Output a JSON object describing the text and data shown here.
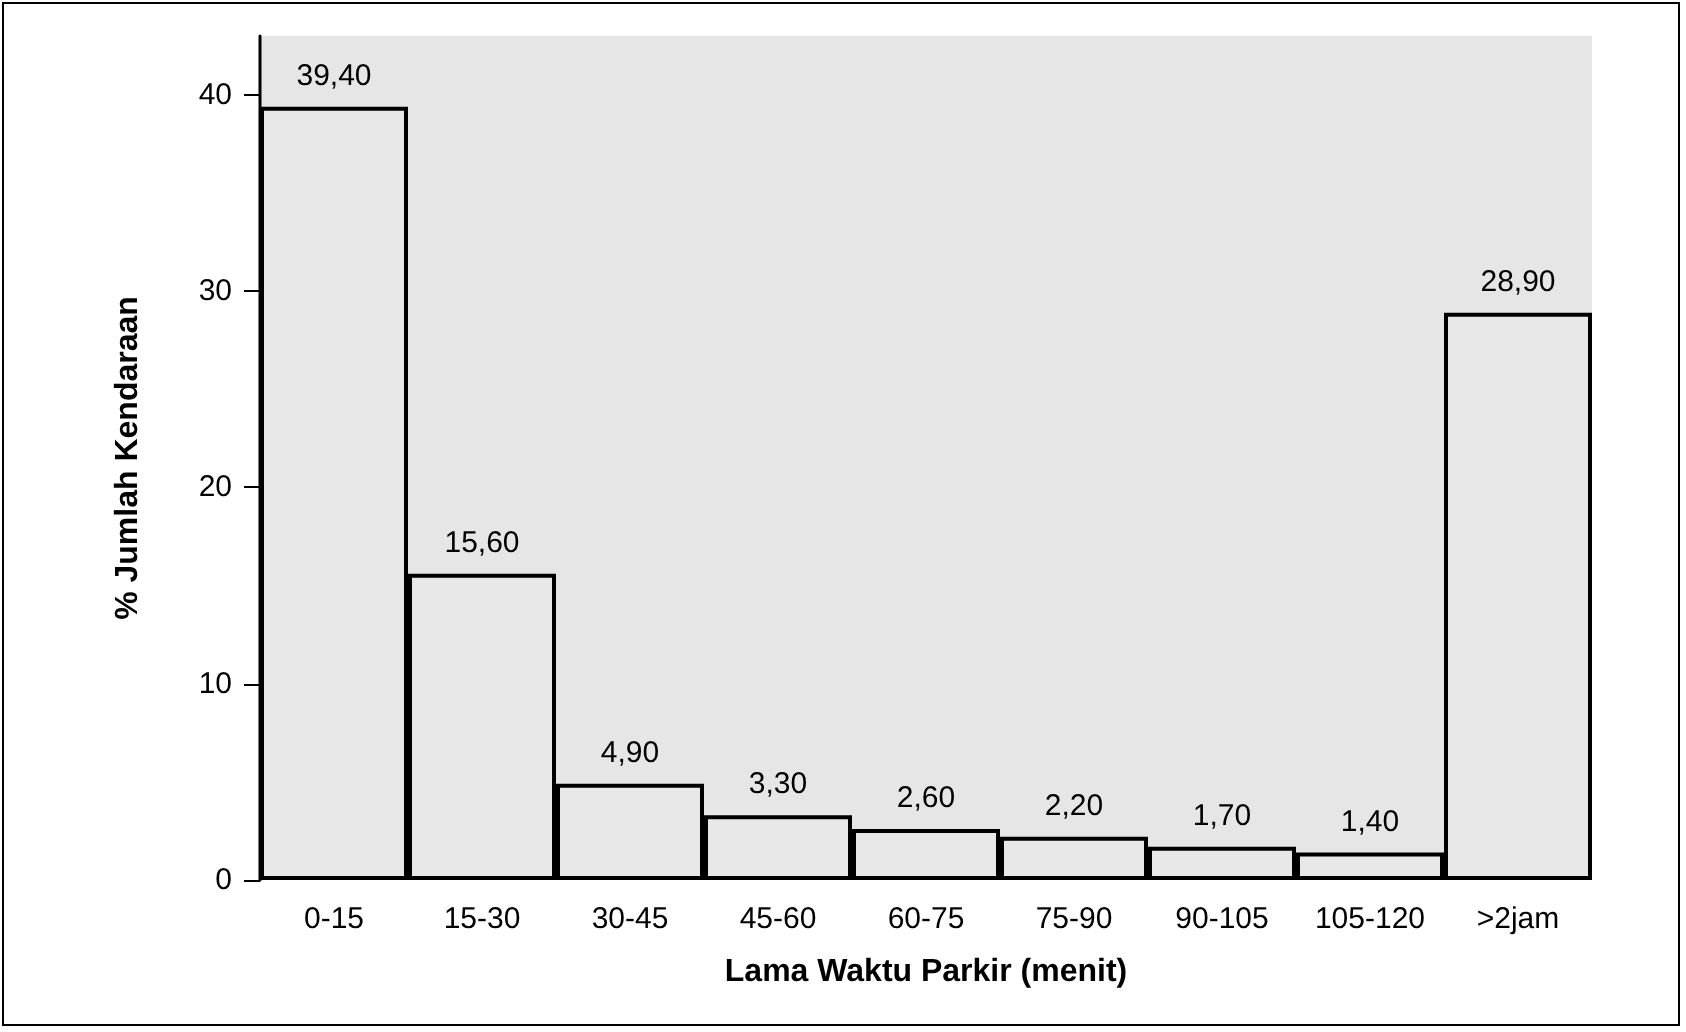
{
  "chart_data": {
    "type": "bar",
    "xlabel": "Lama Waktu Parkir (menit)",
    "ylabel": "% Jumlah Kendaraan",
    "categories": [
      "0-15",
      "15-30",
      "30-45",
      "45-60",
      "60-75",
      "75-90",
      "90-105",
      "105-120",
      ">2jam"
    ],
    "values": [
      39.4,
      15.6,
      4.9,
      3.3,
      2.6,
      2.2,
      1.7,
      1.4,
      28.9
    ],
    "value_labels": [
      "39,40",
      "15,60",
      "4,90",
      "3,30",
      "2,60",
      "2,20",
      "1,70",
      "1,40",
      "28,90"
    ],
    "color": "#e8e8e8",
    "ylim": [
      0,
      43
    ],
    "yticks": [
      0,
      10,
      20,
      30,
      40
    ]
  }
}
